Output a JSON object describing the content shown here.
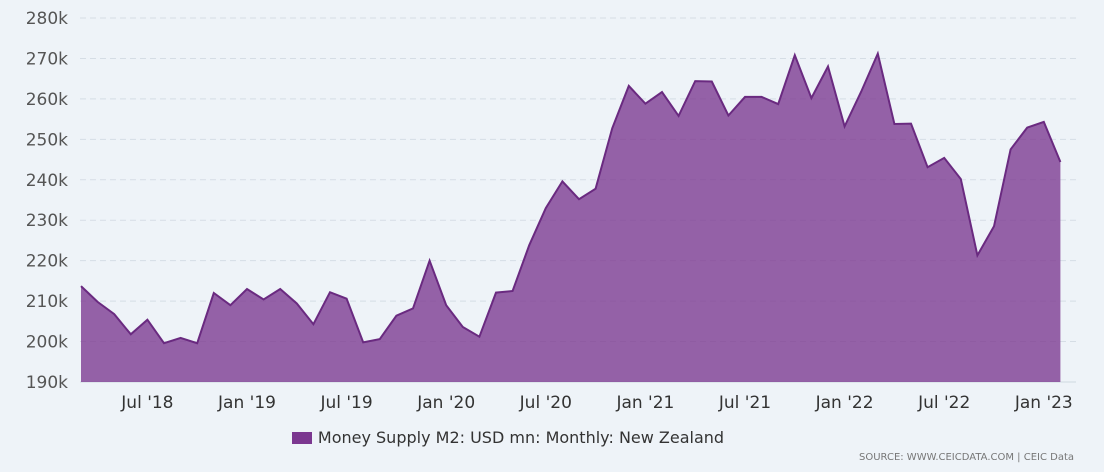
{
  "chart_data": {
    "type": "area",
    "title": "",
    "xlabel": "",
    "ylabel": "",
    "ylim": [
      190000,
      280000
    ],
    "yticks": [
      190000,
      200000,
      210000,
      220000,
      230000,
      240000,
      250000,
      260000,
      270000,
      280000
    ],
    "ytick_labels": [
      "190k",
      "200k",
      "210k",
      "220k",
      "230k",
      "240k",
      "250k",
      "260k",
      "270k",
      "280k"
    ],
    "xtick_labels": [
      "Jul '18",
      "Jan '19",
      "Jul '19",
      "Jan '20",
      "Jul '20",
      "Jan '21",
      "Jul '21",
      "Jan '22",
      "Jul '22",
      "Jan '23"
    ],
    "xtick_positions": [
      "2018-07",
      "2019-01",
      "2019-07",
      "2020-01",
      "2020-07",
      "2021-01",
      "2021-07",
      "2022-01",
      "2022-07",
      "2023-01"
    ],
    "grid": "horizontal dashed",
    "legend_position": "bottom-center",
    "series": [
      {
        "name": "Money Supply M2: USD mn: Monthly: New Zealand",
        "color": "#7b3790",
        "x": [
          "2018-03",
          "2018-04",
          "2018-05",
          "2018-06",
          "2018-07",
          "2018-08",
          "2018-09",
          "2018-10",
          "2018-11",
          "2018-12",
          "2019-01",
          "2019-02",
          "2019-03",
          "2019-04",
          "2019-05",
          "2019-06",
          "2019-07",
          "2019-08",
          "2019-09",
          "2019-10",
          "2019-11",
          "2019-12",
          "2020-01",
          "2020-02",
          "2020-03",
          "2020-04",
          "2020-05",
          "2020-06",
          "2020-07",
          "2020-08",
          "2020-09",
          "2020-10",
          "2020-11",
          "2020-12",
          "2021-01",
          "2021-02",
          "2021-03",
          "2021-04",
          "2021-05",
          "2021-06",
          "2021-07",
          "2021-08",
          "2021-09",
          "2021-10",
          "2021-11",
          "2021-12",
          "2022-01",
          "2022-02",
          "2022-03",
          "2022-04",
          "2022-05",
          "2022-06",
          "2022-07",
          "2022-08",
          "2022-09",
          "2022-10",
          "2022-11",
          "2022-12",
          "2023-01",
          "2023-02"
        ],
        "values": [
          213700,
          209800,
          206800,
          201800,
          205400,
          199600,
          200900,
          199600,
          212000,
          209000,
          213000,
          210400,
          213000,
          209400,
          204300,
          212200,
          210600,
          199800,
          200600,
          206400,
          208200,
          220000,
          209000,
          203600,
          201200,
          212100,
          212500,
          223800,
          233000,
          239600,
          235200,
          237800,
          252700,
          263200,
          258800,
          261700,
          255800,
          264400,
          264300,
          255900,
          260500,
          260500,
          258700,
          270800,
          260200,
          268000,
          253200,
          261800,
          271200,
          253800,
          253900,
          243100,
          245400,
          240200,
          221300,
          228500,
          247500,
          252900,
          254300,
          244400
        ]
      }
    ]
  },
  "legend": {
    "label": "Money Supply M2: USD mn: Monthly: New Zealand",
    "color": "#7b3790"
  },
  "source": "SOURCE: WWW.CEICDATA.COM | CEIC Data"
}
